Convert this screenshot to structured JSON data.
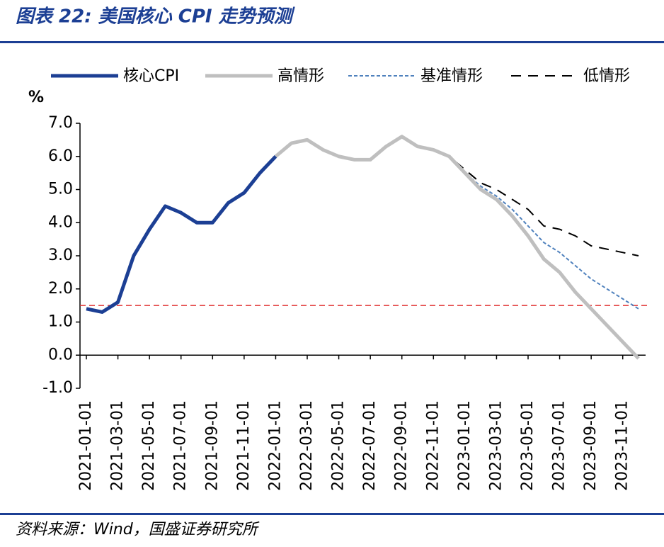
{
  "chart_data": {
    "type": "line",
    "title": "图表 22:  美国核心 CPI 走势预测",
    "source": "资料来源：Wind，国盛证券研究所",
    "ylabel": "%",
    "categories": [
      "2021-01-01",
      null,
      "2021-03-01",
      null,
      "2021-05-01",
      null,
      "2021-07-01",
      null,
      "2021-09-01",
      null,
      "2021-11-01",
      null,
      "2022-01-01",
      null,
      "2022-03-01",
      null,
      "2022-05-01",
      null,
      "2022-07-01",
      null,
      "2022-09-01",
      null,
      "2022-11-01",
      null,
      "2023-01-01",
      null,
      "2023-03-01",
      null,
      "2023-05-01",
      null,
      "2023-07-01",
      null,
      "2023-09-01",
      null,
      "2023-11-01",
      null
    ],
    "series": [
      {
        "name": "核心CPI",
        "color": "#1c3f94",
        "style": "solid",
        "width": 5,
        "values": [
          1.4,
          1.3,
          1.6,
          3.0,
          3.8,
          4.5,
          4.3,
          4.0,
          4.0,
          4.6,
          4.9,
          5.5,
          6.0,
          null,
          null,
          null,
          null,
          null,
          null,
          null,
          null,
          null,
          null,
          null,
          null,
          null,
          null,
          null,
          null,
          null,
          null,
          null,
          null,
          null,
          null,
          null
        ]
      },
      {
        "name": "高情形",
        "color": "#bfbfbf",
        "style": "solid",
        "width": 5,
        "values": [
          null,
          null,
          null,
          null,
          null,
          null,
          null,
          null,
          null,
          null,
          null,
          null,
          6.0,
          6.4,
          6.5,
          6.2,
          6.0,
          5.9,
          5.9,
          6.3,
          6.6,
          6.3,
          6.2,
          6.0,
          5.5,
          5.0,
          4.7,
          4.2,
          3.6,
          2.9,
          2.5,
          1.9,
          1.4,
          0.9,
          0.4,
          -0.1
        ]
      },
      {
        "name": "基准情形",
        "color": "#4f81bd",
        "style": "dotted",
        "width": 2,
        "values": [
          null,
          null,
          null,
          null,
          null,
          null,
          null,
          null,
          null,
          null,
          null,
          null,
          6.0,
          6.4,
          6.5,
          6.2,
          6.0,
          5.9,
          5.9,
          6.3,
          6.6,
          6.3,
          6.2,
          6.0,
          5.5,
          5.1,
          4.8,
          4.4,
          3.9,
          3.4,
          3.1,
          2.7,
          2.3,
          2.0,
          1.7,
          1.4
        ]
      },
      {
        "name": "低情形",
        "color": "#000000",
        "style": "dashed",
        "width": 2,
        "values": [
          null,
          null,
          null,
          null,
          null,
          null,
          null,
          null,
          null,
          null,
          null,
          null,
          6.0,
          6.4,
          6.5,
          6.2,
          6.0,
          5.9,
          5.9,
          6.3,
          6.6,
          6.3,
          6.2,
          6.0,
          5.6,
          5.2,
          5.0,
          4.7,
          4.4,
          3.9,
          3.8,
          3.6,
          3.3,
          3.2,
          3.1,
          3.0
        ]
      }
    ],
    "reference_line": {
      "value": 1.5,
      "color": "#e03030"
    },
    "ylim": [
      -1.0,
      7.0
    ],
    "yticks": [
      {
        "value": -1,
        "label": "-1.0"
      },
      {
        "value": 0,
        "label": "0.0"
      },
      {
        "value": 1,
        "label": "1.0"
      },
      {
        "value": 2,
        "label": "2.0"
      },
      {
        "value": 3,
        "label": "3.0"
      },
      {
        "value": 4,
        "label": "4.0"
      },
      {
        "value": 5,
        "label": "5.0"
      },
      {
        "value": 6,
        "label": "6.0"
      },
      {
        "value": 7,
        "label": "7.0"
      }
    ],
    "grid": false
  }
}
